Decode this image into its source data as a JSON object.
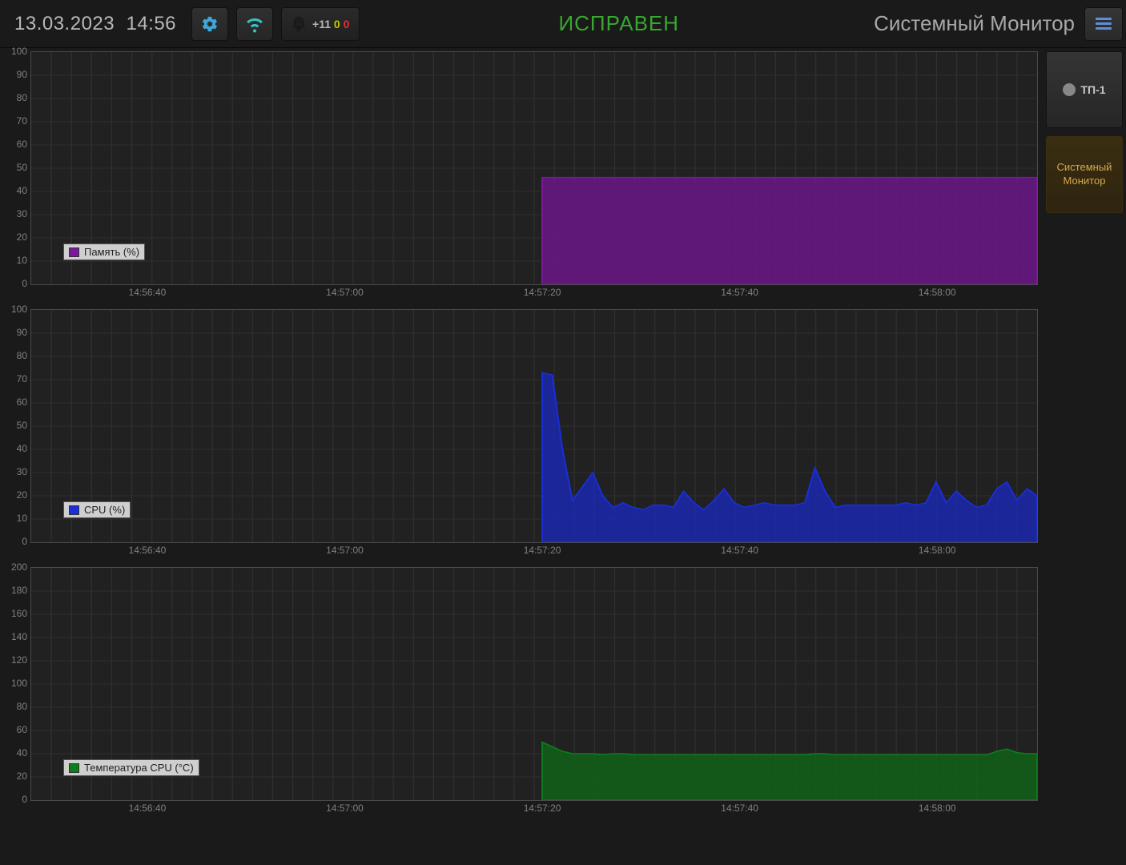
{
  "header": {
    "date": "13.03.2023",
    "time": "14:56",
    "status": "ИСПРАВЕН",
    "status_color": "#37a82e",
    "title": "Системный Монитор",
    "notifications": {
      "plus": "+11",
      "yellow": "0",
      "red": "0"
    }
  },
  "sidebar": {
    "items": [
      {
        "label": "ТП-1",
        "kind": "dot",
        "active": false
      },
      {
        "label": "Системный Монитор",
        "kind": "text",
        "active": true
      }
    ]
  },
  "axis_x": {
    "labels": [
      "14:56:40",
      "14:57:00",
      "14:57:20",
      "14:57:40",
      "14:58:00"
    ],
    "positions_pct": [
      11.6,
      31.2,
      50.8,
      70.4,
      90.0
    ],
    "data_start_pct": 50.8
  },
  "charts": [
    {
      "id": "memory",
      "legend": "Память (%)",
      "color": "#7a1a9a",
      "fill": "#6a1686",
      "fill_opacity": 0.85,
      "y_max": 100,
      "y_step": 10,
      "values": [
        46,
        46,
        46,
        46,
        46,
        46,
        46,
        46,
        46,
        46,
        46,
        46,
        46,
        46,
        46,
        46,
        46,
        46,
        46,
        46,
        46,
        46,
        46,
        46,
        46,
        46,
        46,
        46,
        46,
        46,
        46,
        46,
        46,
        46,
        46,
        46,
        46,
        46,
        46,
        46,
        46,
        46,
        46,
        46,
        46,
        46,
        46,
        46,
        46,
        46
      ]
    },
    {
      "id": "cpu",
      "legend": "CPU (%)",
      "color": "#1a2fda",
      "fill": "#1a28b8",
      "fill_opacity": 0.8,
      "y_max": 100,
      "y_step": 10,
      "values": [
        73,
        72,
        40,
        18,
        24,
        30,
        20,
        15,
        17,
        15,
        14,
        16,
        16,
        15,
        22,
        17,
        14,
        18,
        23,
        17,
        15,
        16,
        17,
        16,
        16,
        16,
        17,
        32,
        22,
        15,
        16,
        16,
        16,
        16,
        16,
        16,
        17,
        16,
        17,
        26,
        17,
        22,
        18,
        15,
        16,
        23,
        26,
        18,
        23,
        20
      ]
    },
    {
      "id": "temp",
      "legend": "Температура CPU (°C)",
      "color": "#0d7d1e",
      "fill": "#106018",
      "fill_opacity": 0.85,
      "y_max": 200,
      "y_step": 20,
      "values": [
        50,
        46,
        42,
        40,
        40,
        40,
        39,
        40,
        40,
        39,
        39,
        39,
        39,
        39,
        39,
        39,
        39,
        39,
        39,
        39,
        39,
        39,
        39,
        39,
        39,
        39,
        39,
        40,
        40,
        39,
        39,
        39,
        39,
        39,
        39,
        39,
        39,
        39,
        39,
        39,
        39,
        39,
        39,
        39,
        39,
        42,
        44,
        41,
        40,
        40
      ]
    }
  ]
}
